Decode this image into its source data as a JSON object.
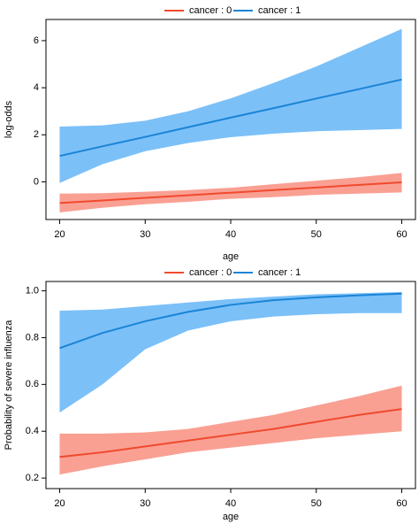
{
  "chart_data": [
    {
      "type": "line",
      "ylabel": "log-odds",
      "xlabel": "age",
      "x": [
        20,
        25,
        30,
        35,
        40,
        45,
        50,
        55,
        60
      ],
      "xlim": [
        18.4,
        61.6
      ],
      "xticks": [
        20,
        30,
        40,
        50,
        60
      ],
      "ylim": [
        -1.6,
        6.9
      ],
      "yticks": [
        0,
        2,
        4,
        6
      ],
      "legend": "top",
      "series": [
        {
          "name": "cancer : 0",
          "color": "#f04a2d",
          "band_color": "#f9a093",
          "values": [
            -0.9,
            -0.79,
            -0.68,
            -0.57,
            -0.46,
            -0.35,
            -0.24,
            -0.13,
            -0.02
          ],
          "lower": [
            -1.3,
            -1.1,
            -0.95,
            -0.85,
            -0.72,
            -0.65,
            -0.55,
            -0.5,
            -0.45
          ],
          "upper": [
            -0.5,
            -0.48,
            -0.42,
            -0.35,
            -0.25,
            -0.1,
            0.05,
            0.2,
            0.38
          ]
        },
        {
          "name": "cancer : 1",
          "color": "#1a84d6",
          "band_color": "#7cc0f8",
          "values": [
            1.1,
            1.51,
            1.91,
            2.32,
            2.73,
            3.13,
            3.54,
            3.94,
            4.35
          ],
          "lower": [
            -0.05,
            0.75,
            1.3,
            1.65,
            1.9,
            2.05,
            2.15,
            2.2,
            2.25
          ],
          "upper": [
            2.35,
            2.4,
            2.6,
            3.0,
            3.55,
            4.2,
            4.9,
            5.7,
            6.5
          ]
        }
      ]
    },
    {
      "type": "line",
      "ylabel": "Probability of severe influenza",
      "xlabel": "age",
      "x": [
        20,
        25,
        30,
        35,
        40,
        45,
        50,
        55,
        60
      ],
      "xlim": [
        18.4,
        61.6
      ],
      "xticks": [
        20,
        30,
        40,
        50,
        60
      ],
      "ylim": [
        0.155,
        1.04
      ],
      "yticks": [
        0.2,
        0.4,
        0.6,
        0.8,
        {
          "value": 1,
          "label": "1.0"
        }
      ],
      "legend": "top",
      "series": [
        {
          "name": "cancer : 0",
          "color": "#f04a2d",
          "band_color": "#f9a093",
          "values": [
            0.29,
            0.31,
            0.335,
            0.36,
            0.385,
            0.41,
            0.44,
            0.47,
            0.495
          ],
          "lower": [
            0.215,
            0.25,
            0.28,
            0.31,
            0.33,
            0.35,
            0.37,
            0.385,
            0.4
          ],
          "upper": [
            0.39,
            0.39,
            0.395,
            0.41,
            0.44,
            0.47,
            0.51,
            0.55,
            0.595
          ]
        },
        {
          "name": "cancer : 1",
          "color": "#1a84d6",
          "band_color": "#7cc0f8",
          "values": [
            0.755,
            0.82,
            0.87,
            0.91,
            0.94,
            0.96,
            0.972,
            0.981,
            0.988
          ],
          "lower": [
            0.48,
            0.6,
            0.75,
            0.83,
            0.87,
            0.89,
            0.9,
            0.905,
            0.905
          ],
          "upper": [
            0.915,
            0.92,
            0.935,
            0.95,
            0.965,
            0.975,
            0.985,
            0.99,
            0.995
          ]
        }
      ]
    }
  ]
}
